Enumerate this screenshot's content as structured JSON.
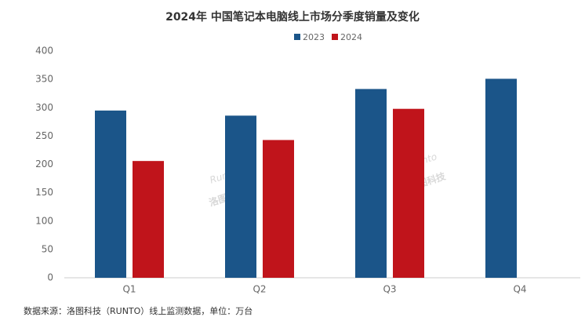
{
  "chart_data": {
    "type": "bar",
    "title": "2024年 中国笔记本电脑线上市场分季度销量及变化",
    "categories": [
      "Q1",
      "Q2",
      "Q3",
      "Q4"
    ],
    "series": [
      {
        "name": "2023",
        "color": "#1b5589",
        "values": [
          295,
          286,
          333,
          351
        ]
      },
      {
        "name": "2024",
        "color": "#c0141b",
        "values": [
          206,
          243,
          298,
          null
        ]
      }
    ],
    "ylim": [
      0,
      400
    ],
    "yticks": [
      0,
      50,
      100,
      150,
      200,
      250,
      300,
      350,
      400
    ],
    "grid": false,
    "legend": "top",
    "source": "数据来源：洛图科技（RUNTO）线上监测数据，单位：万台",
    "watermark": {
      "logo": "Runto",
      "name": "洛图科技"
    }
  }
}
